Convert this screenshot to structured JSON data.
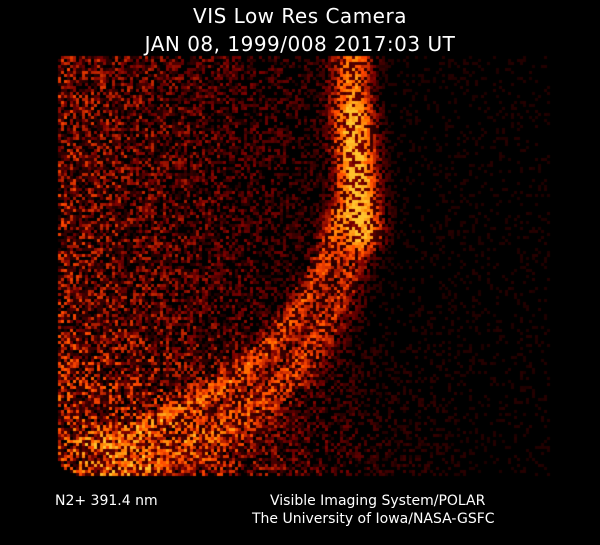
{
  "header": {
    "title": "VIS Low Res Camera",
    "timestamp": "JAN 08, 1999/008 2017:03 UT"
  },
  "footer": {
    "filter": "N2+ 391.4 nm",
    "instrument": "Visible Imaging System/POLAR",
    "institution": "The University of Iowa/NASA-GSFC"
  },
  "image": {
    "subject": "auroral oval",
    "colormap": [
      "#000000",
      "#5a1400",
      "#b03c00",
      "#ff8a10",
      "#ffd070"
    ]
  }
}
